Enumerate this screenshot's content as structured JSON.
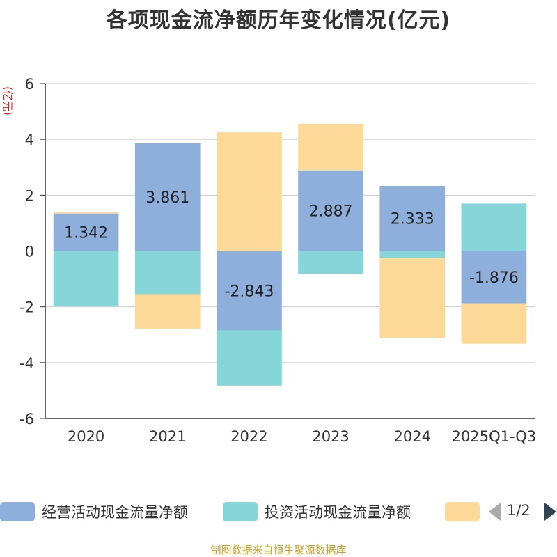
{
  "title": "各项现金流净额历年变化情况(亿元)",
  "source_note": "制图数据来自恒生聚源数据库",
  "legend_page": "1/2",
  "chart_data": {
    "type": "bar",
    "stacked": true,
    "title": "各项现金流净额历年变化情况(亿元)",
    "ylabel": "(亿元)",
    "ylim": [
      -6,
      6
    ],
    "yticks": [
      -6,
      -4,
      -2,
      0,
      2,
      4,
      6
    ],
    "grid": true,
    "legend_position": "bottom",
    "categories": [
      "2020",
      "2021",
      "2022",
      "2023",
      "2024",
      "2025Q1-Q3"
    ],
    "series": [
      {
        "name": "经营活动现金流量净额",
        "color": "#8eaedb",
        "values": [
          1.342,
          3.861,
          -2.843,
          2.887,
          2.333,
          -1.876
        ],
        "show_labels": true
      },
      {
        "name": "投资活动现金流量净额",
        "color": "#86d5d8",
        "values": [
          -1.98,
          -1.55,
          -1.98,
          -0.82,
          -0.25,
          1.7
        ],
        "show_labels": false
      },
      {
        "name": "",
        "color": "#fdd998",
        "values": [
          0.06,
          -1.23,
          4.25,
          1.67,
          -2.87,
          -1.45
        ],
        "show_labels": false
      }
    ]
  }
}
